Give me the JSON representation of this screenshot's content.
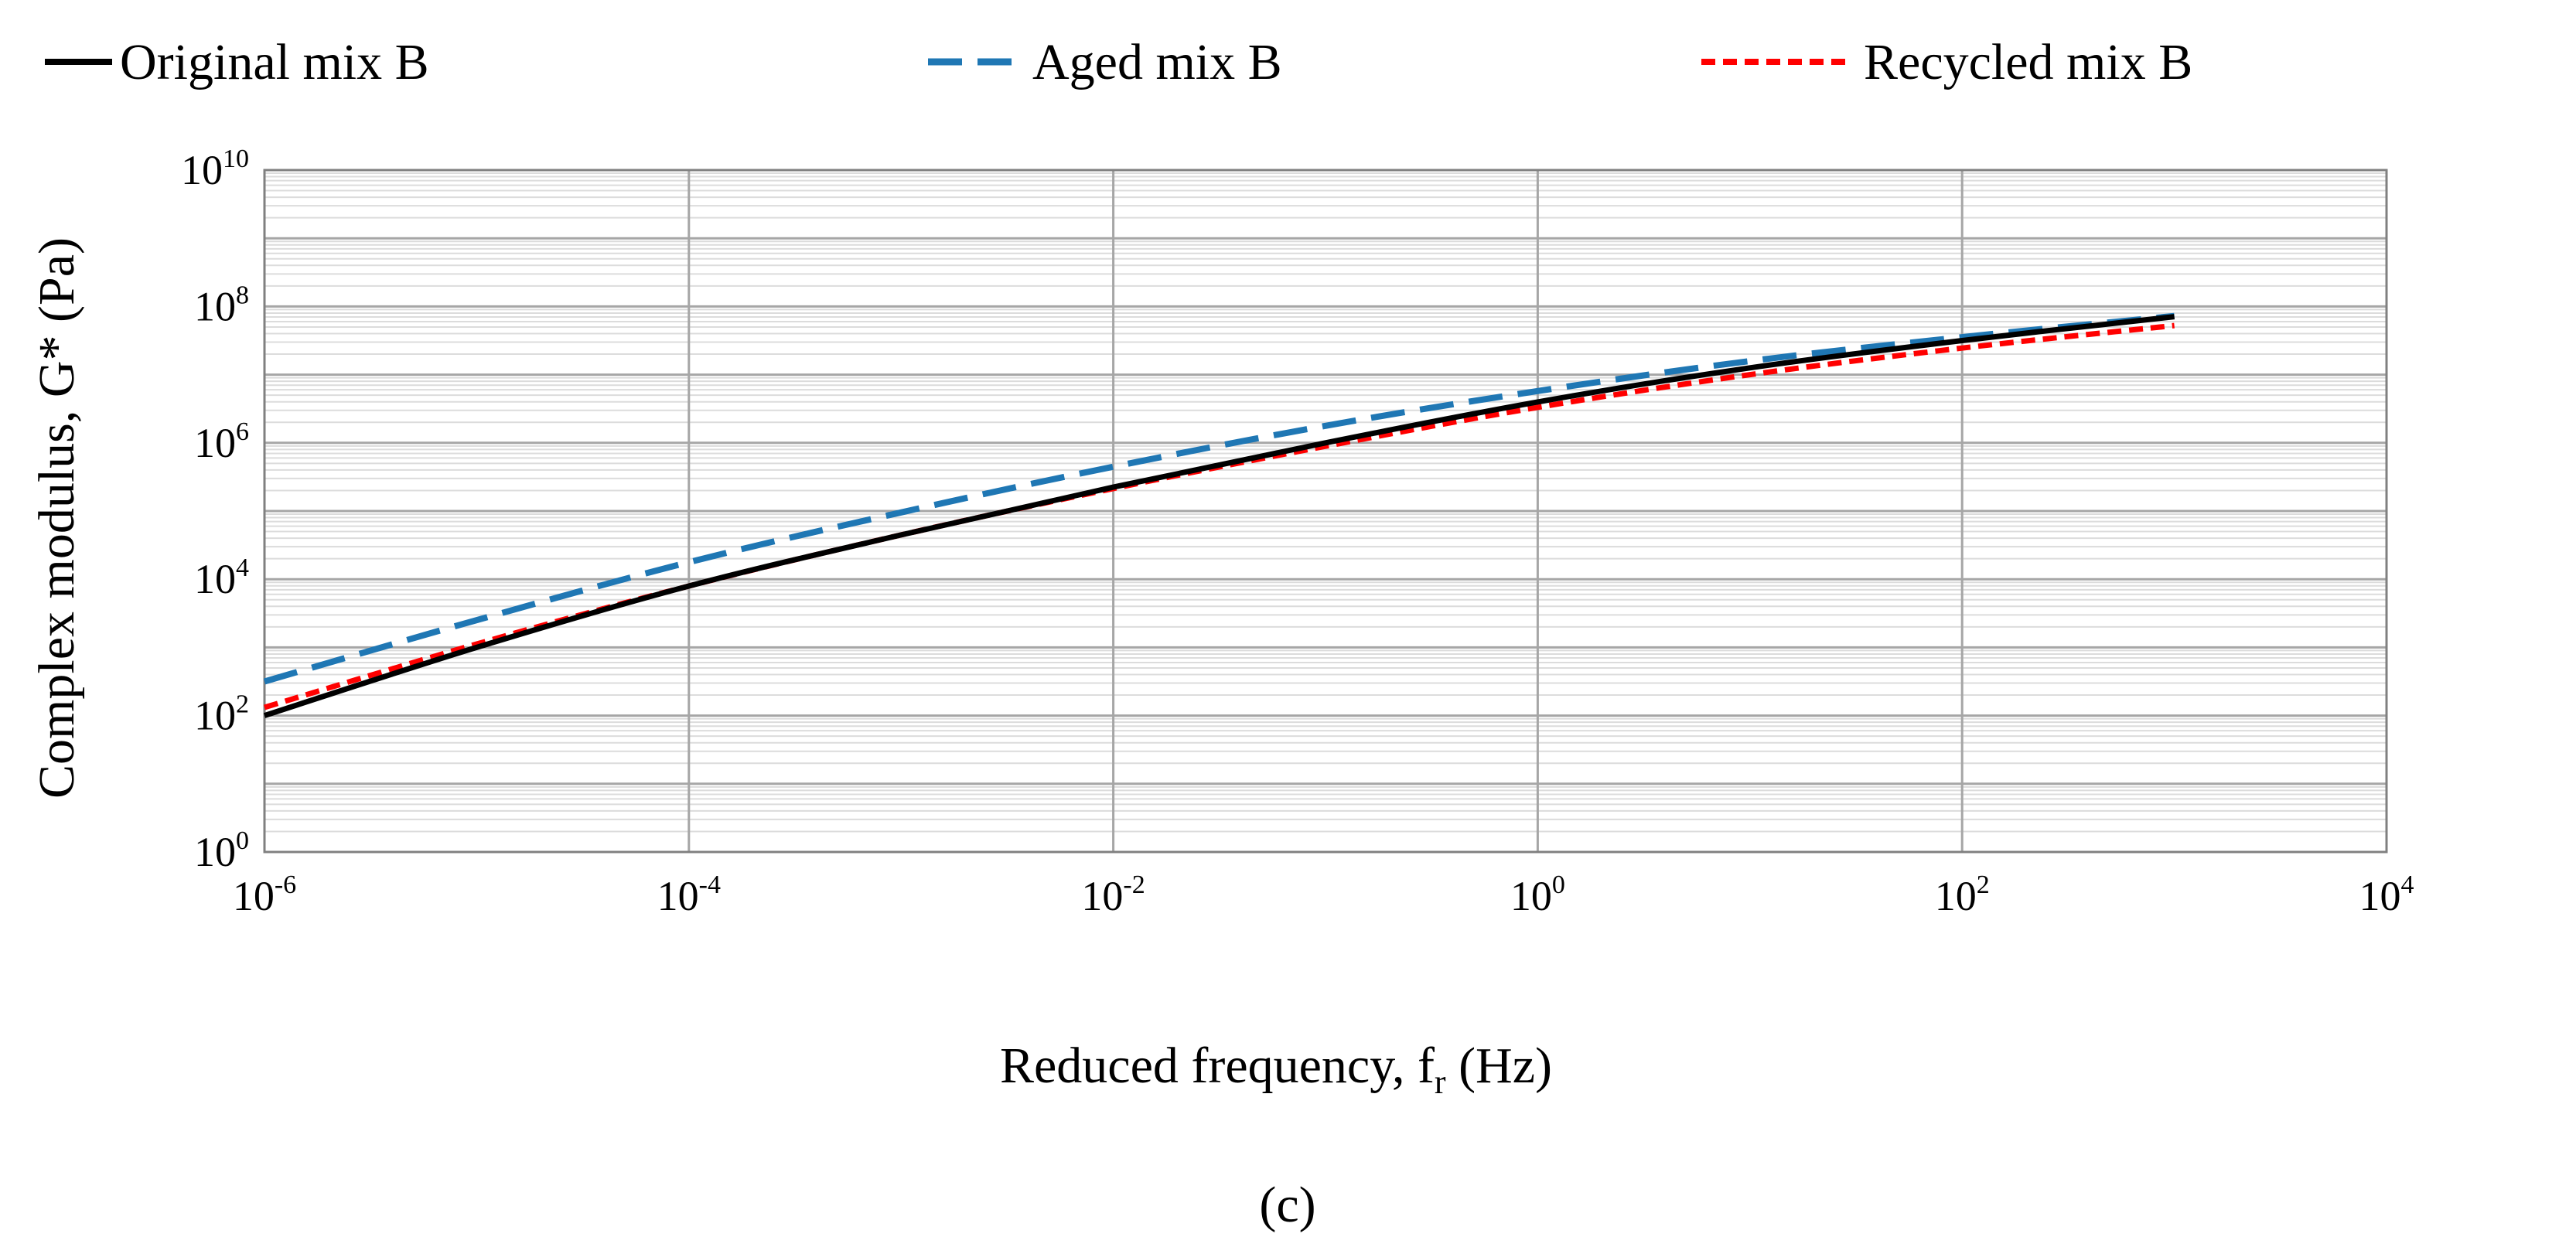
{
  "chart_data": {
    "type": "line",
    "caption": "(c)",
    "xlabel": {
      "main": "Reduced frequency, f",
      "sub": "r",
      "unit": " (Hz)"
    },
    "ylabel": "Complex modulus, G* (Pa)",
    "x_scale": "log",
    "y_scale": "log",
    "xlim": [
      -6,
      4
    ],
    "ylim": [
      0,
      10
    ],
    "grid": true,
    "legend_position": "top",
    "x_ticks": [
      {
        "base": "10",
        "exp": "-6"
      },
      {
        "base": "10",
        "exp": "-4"
      },
      {
        "base": "10",
        "exp": "-2"
      },
      {
        "base": "10",
        "exp": "0"
      },
      {
        "base": "10",
        "exp": "2"
      },
      {
        "base": "10",
        "exp": "4"
      }
    ],
    "y_ticks": [
      {
        "base": "10",
        "exp": "0"
      },
      {
        "base": "10",
        "exp": "2"
      },
      {
        "base": "10",
        "exp": "4"
      },
      {
        "base": "10",
        "exp": "6"
      },
      {
        "base": "10",
        "exp": "8"
      },
      {
        "base": "10",
        "exp": "10"
      }
    ],
    "series": [
      {
        "name": "Original mix B",
        "color": "#000000",
        "dash": "solid",
        "x_log10": [
          -6,
          -5,
          -4,
          -3,
          -2,
          -1,
          0,
          1,
          2,
          3
        ],
        "y_log10": [
          2.0,
          3.0,
          3.9,
          4.65,
          5.35,
          6.0,
          6.6,
          7.1,
          7.5,
          7.85
        ]
      },
      {
        "name": "Aged mix B",
        "color": "#1f77b4",
        "dash": "long-dash",
        "x_log10": [
          -6,
          -5,
          -4,
          -3,
          -2,
          -1,
          0,
          1,
          2,
          3
        ],
        "y_log10": [
          2.5,
          3.4,
          4.25,
          4.98,
          5.65,
          6.25,
          6.76,
          7.2,
          7.55,
          7.86
        ]
      },
      {
        "name": "Recycled mix B",
        "color": "#ff0000",
        "dash": "short-dash",
        "x_log10": [
          -6,
          -5,
          -4,
          -3,
          -2,
          -1,
          0,
          1,
          2,
          3
        ],
        "y_log10": [
          2.12,
          3.05,
          3.9,
          4.65,
          5.33,
          5.95,
          6.52,
          7.0,
          7.39,
          7.72
        ]
      }
    ]
  }
}
